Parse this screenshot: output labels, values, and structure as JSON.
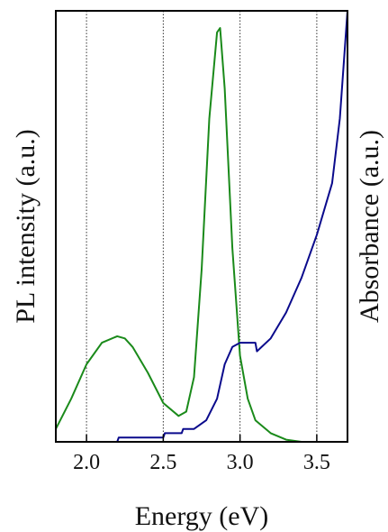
{
  "chart_data": {
    "type": "line",
    "xlabel": "Energy (eV)",
    "ylabel_left": "PL intensity (a.u.)",
    "ylabel_right": "Absorbance (a.u.)",
    "xlim": [
      1.8,
      3.7
    ],
    "ylim": [
      0,
      1
    ],
    "x_ticks": [
      "2.0",
      "2.5",
      "3.0",
      "3.5"
    ],
    "x_tick_values": [
      2.0,
      2.5,
      3.0,
      3.5
    ],
    "grid": "vertical dotted at x ticks",
    "series": [
      {
        "axis": "left",
        "color": "#1a8a1a",
        "x": [
          1.8,
          1.9,
          2.0,
          2.1,
          2.2,
          2.25,
          2.3,
          2.4,
          2.5,
          2.6,
          2.65,
          2.7,
          2.75,
          2.8,
          2.85,
          2.87,
          2.9,
          2.95,
          3.0,
          3.05,
          3.1,
          3.2,
          3.3,
          3.4
        ],
        "y": [
          0.03,
          0.1,
          0.18,
          0.23,
          0.245,
          0.24,
          0.22,
          0.16,
          0.09,
          0.06,
          0.07,
          0.15,
          0.4,
          0.75,
          0.95,
          0.96,
          0.82,
          0.45,
          0.2,
          0.1,
          0.05,
          0.02,
          0.005,
          0.0
        ]
      },
      {
        "axis": "right",
        "color": "#0a0a8c",
        "x": [
          1.8,
          2.0,
          2.2,
          2.21,
          2.5,
          2.51,
          2.62,
          2.63,
          2.7,
          2.78,
          2.85,
          2.9,
          2.95,
          3.0,
          3.1,
          3.11,
          3.2,
          3.3,
          3.4,
          3.5,
          3.6,
          3.65,
          3.7
        ],
        "y": [
          0.0,
          0.0,
          0.0,
          0.01,
          0.01,
          0.02,
          0.02,
          0.03,
          0.03,
          0.05,
          0.1,
          0.18,
          0.22,
          0.23,
          0.23,
          0.21,
          0.24,
          0.3,
          0.38,
          0.48,
          0.6,
          0.75,
          1.0
        ]
      }
    ]
  }
}
